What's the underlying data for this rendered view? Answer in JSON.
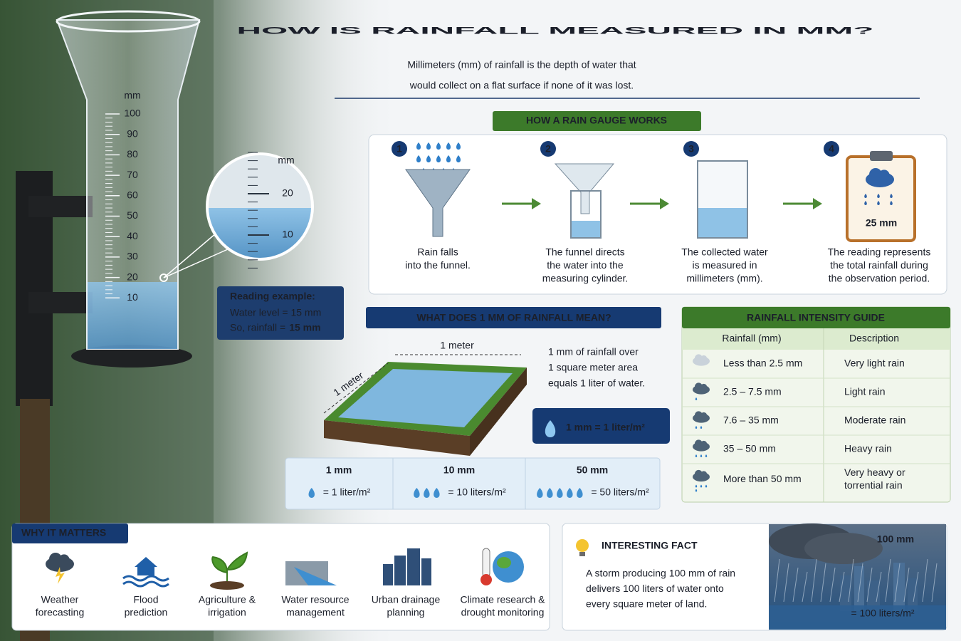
{
  "header": {
    "title": "HOW IS RAINFALL MEASURED IN MM?",
    "subtitle": [
      "Millimeters (mm) of rainfall is the depth of water that",
      "would collect on a flat surface if none of it was lost."
    ]
  },
  "gauge": {
    "unit": "mm",
    "scale": [
      100,
      90,
      80,
      70,
      60,
      50,
      40,
      30,
      20,
      10
    ],
    "zoom_unit": "mm",
    "zoom_scale": [
      20,
      10
    ],
    "reading": {
      "title": "Reading example:",
      "level": "Water level = 15 mm",
      "result": "So, rainfall =",
      "result_value": "15 mm"
    }
  },
  "how_it_works": {
    "title": "HOW A RAIN GAUGE WORKS",
    "steps": [
      {
        "number": 1,
        "text": [
          "Rain falls",
          "into the funnel."
        ]
      },
      {
        "number": 2,
        "text": [
          "The funnel directs",
          "the water into the",
          "measuring cylinder."
        ]
      },
      {
        "number": 3,
        "text": [
          "The collected water",
          "is measured in",
          "millimeters (mm)."
        ]
      },
      {
        "number": 4,
        "text": [
          "The reading represents",
          "the total rainfall during",
          "the observation period."
        ]
      }
    ],
    "clipboard_reading": "25 mm"
  },
  "one_mm": {
    "title": "WHAT DOES 1 MM OF RAINFALL MEAN?",
    "width_label": "1 meter",
    "depth_label": "1 meter",
    "description": [
      "1 mm of rainfall over",
      "1 square meter area",
      "equals 1 liter of water."
    ],
    "badge": "1 mm = 1 liter/m²",
    "examples": [
      {
        "amount": "1 mm",
        "equivalent": "= 1 liter/m²"
      },
      {
        "amount": "10 mm",
        "equivalent": "= 10 liters/m²"
      },
      {
        "amount": "50 mm",
        "equivalent": "= 50 liters/m²"
      }
    ]
  },
  "intensity": {
    "title": "RAINFALL INTENSITY GUIDE",
    "headers": [
      "Rainfall (mm)",
      "Description"
    ],
    "rows": [
      {
        "rainfall": "Less than 2.5 mm",
        "description": [
          "Very light rain"
        ]
      },
      {
        "rainfall": "2.5 – 7.5 mm",
        "description": [
          "Light rain"
        ]
      },
      {
        "rainfall": "7.6 – 35 mm",
        "description": [
          "Moderate rain"
        ]
      },
      {
        "rainfall": "35 – 50 mm",
        "description": [
          "Heavy rain"
        ]
      },
      {
        "rainfall": "More than 50 mm",
        "description": [
          "Very heavy or",
          "torrential rain"
        ]
      }
    ]
  },
  "why_it_matters": {
    "title": "WHY IT MATTERS",
    "items": [
      [
        "Weather",
        "forecasting"
      ],
      [
        "Flood",
        "prediction"
      ],
      [
        "Agriculture &",
        "irrigation"
      ],
      [
        "Water resource",
        "management"
      ],
      [
        "Urban drainage",
        "planning"
      ],
      [
        "Climate research &",
        "drought monitoring"
      ]
    ]
  },
  "fact": {
    "title": "INTERESTING FACT",
    "text": [
      "A storm producing 100 mm of rain",
      "delivers 100 liters of water onto",
      "every square meter of land."
    ],
    "amount": "100 mm",
    "equivalent": "= 100 liters/m²"
  }
}
